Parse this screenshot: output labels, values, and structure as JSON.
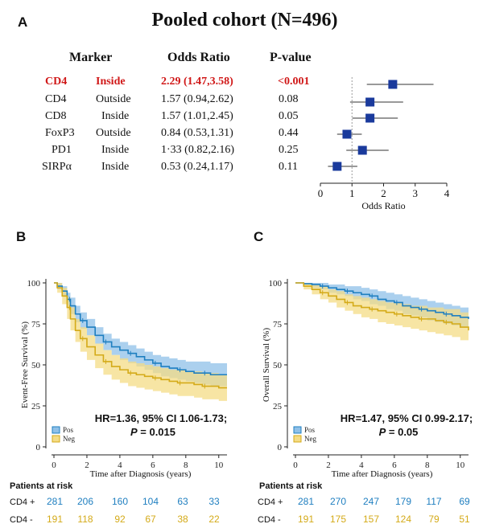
{
  "panel_a": {
    "letter": "A",
    "title": "Pooled cohort (N=496)",
    "headers": {
      "marker": "Marker",
      "or": "Odds Ratio",
      "p": "P-value"
    },
    "rows": [
      {
        "marker": "CD4",
        "location": "Inside",
        "or_text": "2.29 (1.47,3.58)",
        "p": "<0.001",
        "highlight": true,
        "or": 2.29,
        "lo": 1.47,
        "hi": 3.58
      },
      {
        "marker": "CD4",
        "location": "Outside",
        "or_text": "1.57 (0.94,2.62)",
        "p": "0.08",
        "highlight": false,
        "or": 1.57,
        "lo": 0.94,
        "hi": 2.62
      },
      {
        "marker": "CD8",
        "location": "Inside",
        "or_text": "1.57 (1.01,2.45)",
        "p": "0.05",
        "highlight": false,
        "or": 1.57,
        "lo": 1.01,
        "hi": 2.45
      },
      {
        "marker": "FoxP3",
        "location": "Outside",
        "or_text": "0.84 (0.53,1.31)",
        "p": "0.44",
        "highlight": false,
        "or": 0.84,
        "lo": 0.53,
        "hi": 1.31
      },
      {
        "marker": "PD1",
        "location": "Inside",
        "or_text": "1·33 (0.82,2.16)",
        "p": "0.25",
        "highlight": false,
        "or": 1.33,
        "lo": 0.82,
        "hi": 2.16
      },
      {
        "marker": "SIRPα",
        "location": "Inside",
        "or_text": "0.53 (0.24,1.17)",
        "p": "0.11",
        "highlight": false,
        "or": 0.53,
        "lo": 0.24,
        "hi": 1.17
      }
    ]
  },
  "panel_b": {
    "letter": "B",
    "hr_line1": "HR=1.36, 95% CI 1.06-1.73;",
    "hr_p_label": "P",
    "hr_p_value": "= 0.015"
  },
  "panel_c": {
    "letter": "C",
    "hr_line1": "HR=1.47, 95% CI 0.99-2.17;",
    "hr_p_label": "P",
    "hr_p_value": "= 0.05"
  },
  "risk_table": {
    "heading": "Patients at risk",
    "pos_label": "CD4 +",
    "neg_label": "CD4 -",
    "b_pos": [
      "281",
      "206",
      "160",
      "104",
      "63",
      "33"
    ],
    "b_neg": [
      "191",
      "118",
      "92",
      "67",
      "38",
      "22"
    ],
    "c_pos": [
      "281",
      "270",
      "247",
      "179",
      "117",
      "69"
    ],
    "c_neg": [
      "191",
      "175",
      "157",
      "124",
      "79",
      "51"
    ]
  },
  "colors": {
    "pos": "#1f7fc0",
    "pos_band": "#8fc0e8",
    "neg": "#d4aa18",
    "neg_band": "#f4dc86",
    "marker": "#1a3a9c",
    "highlight": "#d01818"
  },
  "chart_data": [
    {
      "type": "scatter",
      "subtype": "forest",
      "title": "Pooled cohort (N=496)",
      "xlabel": "Odds Ratio",
      "xlim": [
        0,
        4
      ],
      "xticks": [
        "0",
        "1",
        "2",
        "3",
        "4"
      ],
      "categories": [
        "CD4 Inside",
        "CD4 Outside",
        "CD8 Inside",
        "FoxP3 Outside",
        "PD1 Inside",
        "SIRPα Inside"
      ],
      "values": [
        2.29,
        1.57,
        1.57,
        0.84,
        1.33,
        0.53
      ],
      "ci_low": [
        1.47,
        0.94,
        1.01,
        0.53,
        0.82,
        0.24
      ],
      "ci_high": [
        3.58,
        2.62,
        2.45,
        1.31,
        2.16,
        1.17
      ]
    },
    {
      "type": "line",
      "subtype": "kaplan-meier",
      "xlabel": "Time after Diagnosis (years)",
      "ylabel": "Event-Free Survival (%)",
      "xlim": [
        0,
        10.5
      ],
      "ylim": [
        0,
        100
      ],
      "xticks": [
        "0",
        "2",
        "4",
        "6",
        "8",
        "10"
      ],
      "yticks": [
        "0",
        "25",
        "50",
        "75",
        "100"
      ],
      "legend": [
        "Pos",
        "Neg"
      ],
      "legend_position": "bottom-left",
      "series": [
        {
          "name": "Pos",
          "x": [
            0,
            0.2,
            0.5,
            0.8,
            1,
            1.3,
            1.6,
            2,
            2.5,
            3,
            3.5,
            4,
            4.5,
            5,
            5.5,
            6,
            6.5,
            7,
            7.5,
            8,
            8.5,
            9,
            9.5,
            10,
            10.5
          ],
          "y": [
            100,
            98,
            95,
            90,
            86,
            81,
            77,
            73,
            68,
            64,
            61,
            59,
            57,
            55,
            53,
            51,
            49,
            48,
            47,
            46,
            45,
            45,
            44,
            44,
            44
          ],
          "lower": [
            100,
            96,
            92,
            86,
            81,
            76,
            72,
            68,
            63,
            59,
            56,
            53,
            51,
            49,
            47,
            45,
            43,
            42,
            41,
            40,
            39,
            38,
            37,
            37,
            37
          ],
          "upper": [
            100,
            100,
            98,
            94,
            91,
            86,
            82,
            78,
            73,
            69,
            66,
            64,
            62,
            60,
            58,
            56,
            55,
            54,
            53,
            52,
            52,
            52,
            51,
            51,
            51
          ]
        },
        {
          "name": "Neg",
          "x": [
            0,
            0.2,
            0.5,
            0.8,
            1,
            1.3,
            1.6,
            2,
            2.5,
            3,
            3.5,
            4,
            4.5,
            5,
            5.5,
            6,
            6.5,
            7,
            7.5,
            8,
            8.5,
            9,
            9.5,
            10,
            10.5
          ],
          "y": [
            100,
            97,
            92,
            85,
            78,
            71,
            66,
            61,
            56,
            52,
            49,
            47,
            45,
            44,
            43,
            42,
            41,
            40,
            39,
            39,
            38,
            37,
            37,
            36,
            36
          ],
          "lower": [
            100,
            94,
            87,
            78,
            71,
            64,
            58,
            53,
            48,
            44,
            41,
            39,
            37,
            36,
            35,
            34,
            33,
            32,
            31,
            31,
            30,
            29,
            29,
            28,
            28
          ],
          "upper": [
            100,
            100,
            97,
            91,
            85,
            78,
            73,
            68,
            63,
            59,
            56,
            54,
            52,
            51,
            50,
            49,
            48,
            47,
            47,
            46,
            46,
            45,
            45,
            44,
            44
          ]
        }
      ]
    },
    {
      "type": "line",
      "subtype": "kaplan-meier",
      "xlabel": "Time after Diagnosis (years)",
      "ylabel": "Overall Survival (%)",
      "xlim": [
        0,
        10.5
      ],
      "ylim": [
        0,
        100
      ],
      "xticks": [
        "0",
        "2",
        "4",
        "6",
        "8",
        "10"
      ],
      "yticks": [
        "0",
        "25",
        "50",
        "75",
        "100"
      ],
      "legend": [
        "Pos",
        "Neg"
      ],
      "legend_position": "bottom-left",
      "series": [
        {
          "name": "Pos",
          "x": [
            0,
            0.5,
            1,
            1.5,
            2,
            2.5,
            3,
            3.5,
            4,
            4.5,
            5,
            5.5,
            6,
            6.5,
            7,
            7.5,
            8,
            8.5,
            9,
            9.5,
            10,
            10.5
          ],
          "y": [
            100,
            99.5,
            99,
            98,
            97,
            96,
            95,
            94,
            93,
            92,
            90,
            89,
            88,
            86,
            85,
            84,
            83,
            82,
            81,
            80,
            79,
            78
          ],
          "lower": [
            100,
            99,
            97,
            96,
            94,
            93,
            92,
            90,
            89,
            87,
            86,
            84,
            83,
            81,
            80,
            79,
            77,
            76,
            75,
            74,
            73,
            72
          ],
          "upper": [
            100,
            100,
            100,
            100,
            99,
            99,
            98,
            98,
            97,
            96,
            95,
            94,
            93,
            92,
            91,
            90,
            89,
            88,
            87,
            86,
            85,
            84
          ]
        },
        {
          "name": "Neg",
          "x": [
            0,
            0.5,
            1,
            1.5,
            2,
            2.5,
            3,
            3.5,
            4,
            4.5,
            5,
            5.5,
            6,
            6.5,
            7,
            7.5,
            8,
            8.5,
            9,
            9.5,
            10,
            10.5
          ],
          "y": [
            100,
            98,
            96,
            94,
            92,
            90,
            88,
            86,
            85,
            84,
            83,
            82,
            81,
            80,
            79,
            78,
            78,
            77,
            76,
            75,
            73,
            71
          ],
          "lower": [
            100,
            96,
            93,
            90,
            88,
            85,
            83,
            81,
            79,
            78,
            76,
            75,
            74,
            73,
            72,
            71,
            70,
            69,
            68,
            67,
            65,
            62
          ],
          "upper": [
            100,
            100,
            99,
            98,
            96,
            95,
            93,
            92,
            91,
            90,
            89,
            88,
            88,
            87,
            86,
            86,
            85,
            85,
            84,
            84,
            82,
            80
          ]
        }
      ]
    }
  ]
}
